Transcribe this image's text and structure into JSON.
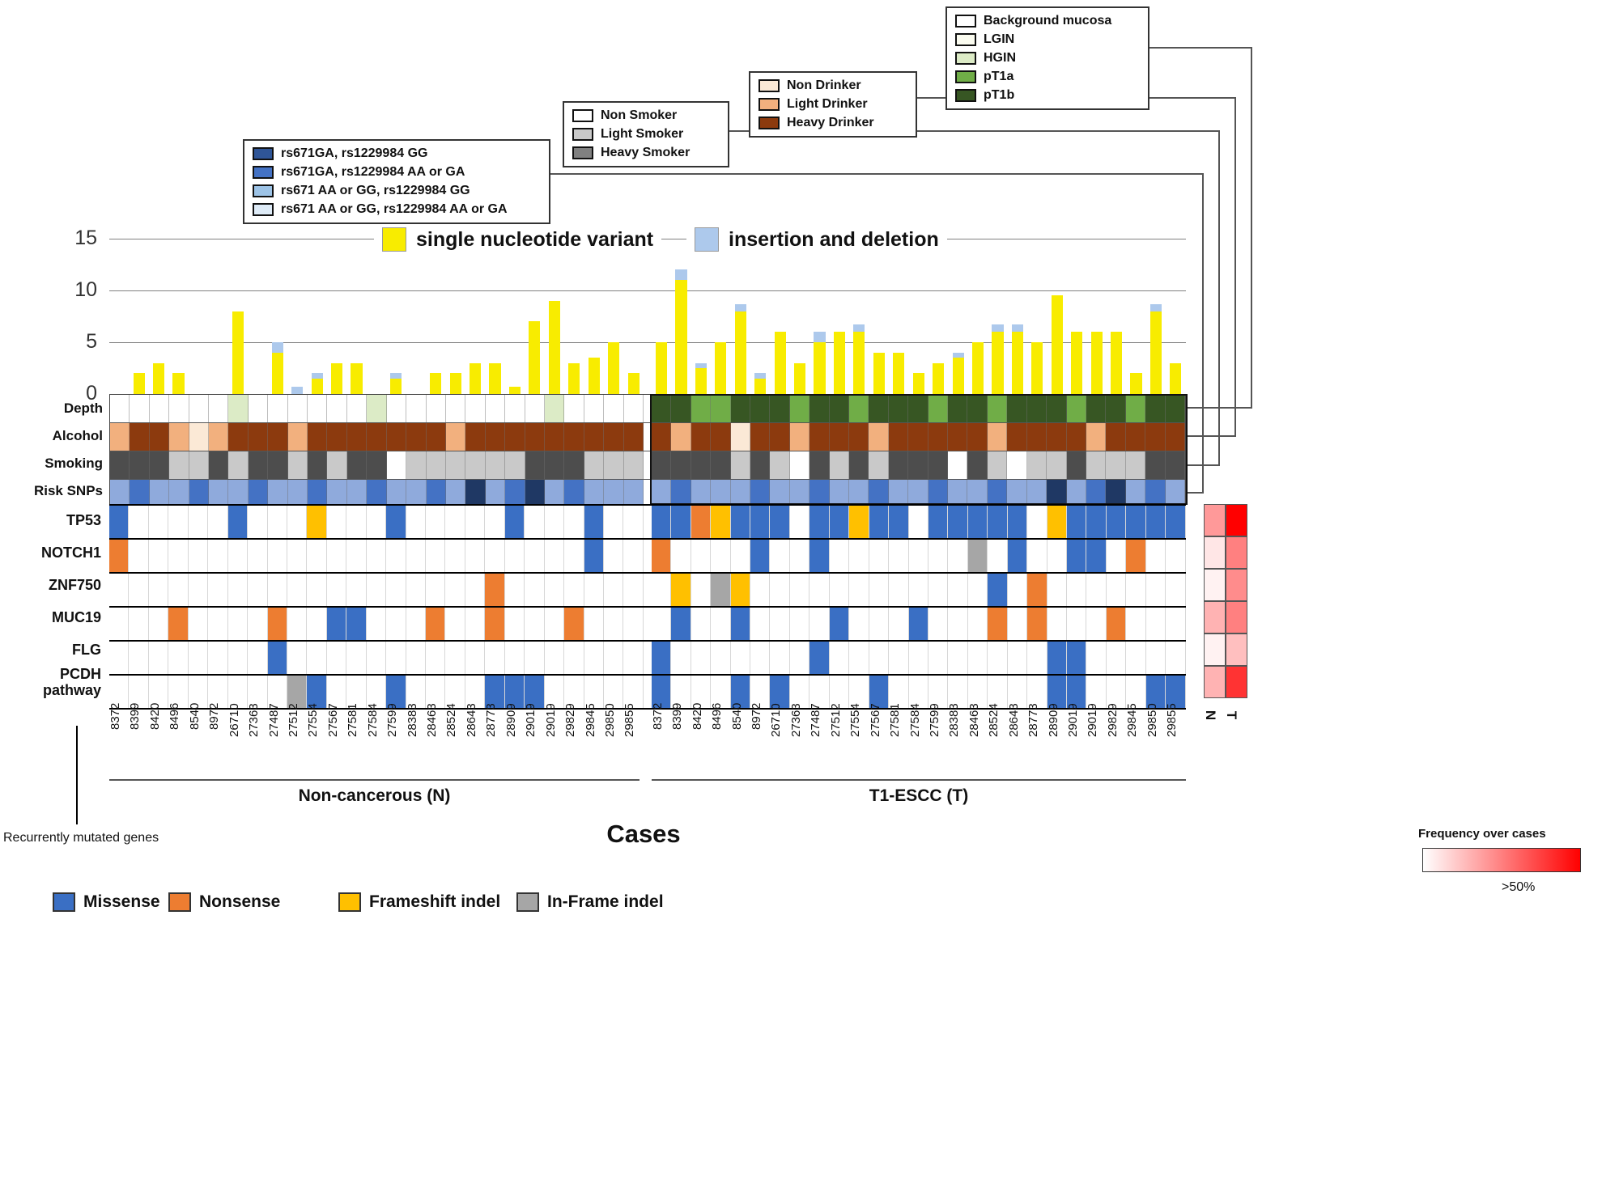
{
  "colors": {
    "snv": "#F8EC00",
    "indel": "#ADC9EC",
    "missense": "#3A6FC4",
    "nonsense": "#ED7D31",
    "frameshift": "#FFC000",
    "inframe": "#A6A6A6",
    "depth": {
      "BM": "#FFFFFF",
      "LGIN": "#FBFCF0",
      "HGIN": "#DCEBC6",
      "pT1a": "#70AD47",
      "pT1b": "#375623"
    },
    "alcohol": {
      "N": "#FBE9D6",
      "L": "#F2B07E",
      "H": "#8C3A0E"
    },
    "smoking": {
      "N": "#FFFFFF",
      "L": "#C9C9C9",
      "H": "#4D4D4D"
    },
    "snp": {
      "d1": "#1F3864",
      "d2": "#4472C4",
      "d3": "#8FAADC",
      "d4": "#DEEBF7"
    }
  },
  "labels": {
    "recurrent": "Recurrently mutated genes",
    "freq_title": "Frequency over cases",
    "freq_threshold": ">50%",
    "heat_cols": [
      "N",
      "T"
    ]
  },
  "legends": {
    "depth": [
      {
        "color": "#FFFFFF",
        "label": "Background mucosa"
      },
      {
        "color": "#FBFCF0",
        "label": "LGIN"
      },
      {
        "color": "#DCEBC6",
        "label": "HGIN"
      },
      {
        "color": "#70AD47",
        "label": "pT1a"
      },
      {
        "color": "#375623",
        "label": "pT1b"
      }
    ],
    "drinker": [
      {
        "color": "#FBE9D6",
        "label": "Non Drinker"
      },
      {
        "color": "#F2B07E",
        "label": "Light Drinker"
      },
      {
        "color": "#8C3A0E",
        "label": "Heavy Drinker"
      }
    ],
    "smoker": [
      {
        "color": "#FFFFFF",
        "label": "Non Smoker"
      },
      {
        "color": "#C9C9C9",
        "label": "Light Smoker"
      },
      {
        "color": "#808080",
        "label": "Heavy Smoker"
      }
    ],
    "snp": [
      {
        "color": "#2F5597",
        "label": "rs671GA, rs1229984 GG"
      },
      {
        "color": "#4472C4",
        "label": "rs671GA, rs1229984 AA or GA"
      },
      {
        "color": "#9DC3E6",
        "label": "rs671 AA or GG, rs1229984 GG"
      },
      {
        "color": "#DEEBF7",
        "label": "rs671 AA or GG, rs1229984 AA or GA"
      }
    ],
    "mutation": [
      {
        "color": "#3A6FC4",
        "label": "Missense"
      },
      {
        "color": "#ED7D31",
        "label": "Nonsense"
      },
      {
        "color": "#FFC000",
        "label": "Frameshift indel"
      },
      {
        "color": "#A6A6A6",
        "label": "In-Frame indel"
      }
    ]
  },
  "chart_data": {
    "type": "heatmap",
    "xlabel": "Cases",
    "cases": [
      "8372",
      "8399",
      "8420",
      "8496",
      "8540",
      "8972",
      "26710",
      "27363",
      "27487",
      "27512",
      "27554",
      "27567",
      "27581",
      "27584",
      "27599",
      "28383",
      "28463",
      "28524",
      "28643",
      "28773",
      "28909",
      "29019",
      "29019",
      "29829",
      "29845",
      "29850",
      "29855"
    ],
    "groups": [
      {
        "key": "N",
        "label": "Non-cancerous (N)"
      },
      {
        "key": "T",
        "label": "T1-ESCC (T)"
      }
    ],
    "bar": {
      "type": "bar",
      "stacked": true,
      "ylim": [
        0,
        15
      ],
      "yticks": [
        "15",
        "10",
        "5",
        "0"
      ],
      "series_labels": [
        "single nucleotide variant",
        "insertion and deletion"
      ],
      "snv": {
        "N": [
          0,
          2,
          3,
          2,
          0,
          0,
          8,
          0,
          4,
          0,
          1.5,
          3,
          3,
          0,
          1.5,
          0,
          2,
          2,
          3,
          3,
          0.7,
          7,
          9,
          3,
          3.5,
          5,
          2
        ],
        "T": [
          5,
          11,
          2.5,
          5,
          8,
          1.5,
          6,
          3,
          5,
          6,
          6,
          4,
          4,
          2,
          3,
          3.5,
          5,
          6,
          6,
          5,
          9.5,
          6,
          6,
          6,
          2,
          8,
          3
        ]
      },
      "indel": {
        "N": [
          0,
          0,
          0,
          0,
          0,
          0,
          0,
          0,
          1,
          0.7,
          0.5,
          0,
          0,
          0,
          0.5,
          0,
          0,
          0,
          0,
          0,
          0,
          0,
          0,
          0,
          0,
          0,
          0
        ],
        "T": [
          0,
          1,
          0.5,
          0,
          0.7,
          0.5,
          0,
          0,
          1,
          0,
          0.7,
          0,
          0,
          0,
          0,
          0.5,
          0,
          0.7,
          0.7,
          0,
          0,
          0,
          0,
          0,
          0,
          0.7,
          0
        ]
      }
    },
    "tracks": [
      {
        "label": "Depth",
        "palette": "depth",
        "N": [
          "BM",
          "BM",
          "BM",
          "BM",
          "BM",
          "BM",
          "HGIN",
          "BM",
          "BM",
          "BM",
          "BM",
          "BM",
          "BM",
          "HGIN",
          "BM",
          "BM",
          "BM",
          "BM",
          "BM",
          "BM",
          "BM",
          "BM",
          "HGIN",
          "BM",
          "BM",
          "BM",
          "BM"
        ],
        "T": [
          "pT1b",
          "pT1b",
          "pT1a",
          "pT1a",
          "pT1b",
          "pT1b",
          "pT1b",
          "pT1a",
          "pT1b",
          "pT1b",
          "pT1a",
          "pT1b",
          "pT1b",
          "pT1b",
          "pT1a",
          "pT1b",
          "pT1b",
          "pT1a",
          "pT1b",
          "pT1b",
          "pT1b",
          "pT1a",
          "pT1b",
          "pT1b",
          "pT1a",
          "pT1b",
          "pT1b"
        ]
      },
      {
        "label": "Alcohol",
        "palette": "alcohol",
        "N": [
          "L",
          "H",
          "H",
          "L",
          "N",
          "L",
          "H",
          "H",
          "H",
          "L",
          "H",
          "H",
          "H",
          "H",
          "H",
          "H",
          "H",
          "L",
          "H",
          "H",
          "H",
          "H",
          "H",
          "H",
          "H",
          "H",
          "H"
        ],
        "T": [
          "H",
          "L",
          "H",
          "H",
          "N",
          "H",
          "H",
          "L",
          "H",
          "H",
          "H",
          "L",
          "H",
          "H",
          "H",
          "H",
          "H",
          "L",
          "H",
          "H",
          "H",
          "H",
          "L",
          "H",
          "H",
          "H",
          "H"
        ]
      },
      {
        "label": "Smoking",
        "palette": "smoking",
        "N": [
          "H",
          "H",
          "H",
          "L",
          "L",
          "H",
          "L",
          "H",
          "H",
          "L",
          "H",
          "L",
          "H",
          "H",
          "N",
          "L",
          "L",
          "L",
          "L",
          "L",
          "L",
          "H",
          "H",
          "H",
          "L",
          "L",
          "L"
        ],
        "T": [
          "H",
          "H",
          "H",
          "H",
          "L",
          "H",
          "L",
          "N",
          "H",
          "L",
          "H",
          "L",
          "H",
          "H",
          "H",
          "N",
          "H",
          "L",
          "N",
          "L",
          "L",
          "H",
          "L",
          "L",
          "L",
          "H",
          "H"
        ]
      },
      {
        "label": "Risk SNPs",
        "palette": "snp",
        "N": [
          "d3",
          "d2",
          "d3",
          "d3",
          "d2",
          "d3",
          "d3",
          "d2",
          "d3",
          "d3",
          "d2",
          "d3",
          "d3",
          "d2",
          "d3",
          "d3",
          "d2",
          "d3",
          "d1",
          "d3",
          "d2",
          "d1",
          "d3",
          "d2",
          "d3",
          "d3",
          "d3"
        ],
        "T": [
          "d3",
          "d2",
          "d3",
          "d3",
          "d3",
          "d2",
          "d3",
          "d3",
          "d2",
          "d3",
          "d3",
          "d2",
          "d3",
          "d3",
          "d2",
          "d3",
          "d3",
          "d2",
          "d3",
          "d3",
          "d1",
          "d3",
          "d2",
          "d1",
          "d3",
          "d2",
          "d3"
        ]
      }
    ],
    "genes": [
      {
        "label": "TP53",
        "N": [
          "M",
          "",
          "",
          "",
          "",
          "",
          "M",
          "",
          "",
          "",
          "F",
          "",
          "",
          "",
          "M",
          "",
          "",
          "",
          "",
          "",
          "M",
          "",
          "",
          "",
          "M",
          "",
          ""
        ],
        "T": [
          "M",
          "M",
          "N",
          "F",
          "M",
          "M",
          "M",
          "",
          "M",
          "M",
          "F",
          "M",
          "M",
          "",
          "M",
          "M",
          "M",
          "M",
          "M",
          "",
          "F",
          "M",
          "M",
          "M",
          "M",
          "M",
          "M"
        ],
        "freq": {
          "N": 0.4,
          "T": 1.0
        }
      },
      {
        "label": "NOTCH1",
        "N": [
          "N",
          "",
          "",
          "",
          "",
          "",
          "",
          "",
          "",
          "",
          "",
          "",
          "",
          "",
          "",
          "",
          "",
          "",
          "",
          "",
          "",
          "",
          "",
          "",
          "M",
          "",
          ""
        ],
        "T": [
          "N",
          "",
          "",
          "",
          "",
          "M",
          "",
          "",
          "M",
          "",
          "",
          "",
          "",
          "",
          "",
          "",
          "I",
          "",
          "M",
          "",
          "",
          "M",
          "M",
          "",
          "N",
          "",
          ""
        ],
        "freq": {
          "N": 0.1,
          "T": 0.5
        }
      },
      {
        "label": "ZNF750",
        "N": [
          "",
          "",
          "",
          "",
          "",
          "",
          "",
          "",
          "",
          "",
          "",
          "",
          "",
          "",
          "",
          "",
          "",
          "",
          "",
          "N",
          "",
          "",
          "",
          "",
          "",
          "",
          ""
        ],
        "T": [
          "",
          "F",
          "",
          "I",
          "F",
          "",
          "",
          "",
          "",
          "",
          "",
          "",
          "",
          "",
          "",
          "",
          "",
          "M",
          "",
          "N",
          "",
          "",
          "",
          "",
          "",
          "",
          ""
        ],
        "freq": {
          "N": 0.05,
          "T": 0.45
        }
      },
      {
        "label": "MUC19",
        "N": [
          "",
          "",
          "",
          "N",
          "",
          "",
          "",
          "",
          "N",
          "",
          "",
          "M",
          "M",
          "",
          "",
          "",
          "N",
          "",
          "",
          "N",
          "",
          "",
          "",
          "N",
          "",
          "",
          ""
        ],
        "T": [
          "",
          "M",
          "",
          "",
          "M",
          "",
          "",
          "",
          "",
          "M",
          "",
          "",
          "",
          "M",
          "",
          "",
          "",
          "N",
          "",
          "N",
          "",
          "",
          "",
          "N",
          "",
          "",
          ""
        ],
        "freq": {
          "N": 0.3,
          "T": 0.5
        }
      },
      {
        "label": "FLG",
        "N": [
          "",
          "",
          "",
          "",
          "",
          "",
          "",
          "",
          "M",
          "",
          "",
          "",
          "",
          "",
          "",
          "",
          "",
          "",
          "",
          "",
          "",
          "",
          "",
          "",
          "",
          "",
          ""
        ],
        "T": [
          "M",
          "",
          "",
          "",
          "",
          "",
          "",
          "",
          "M",
          "",
          "",
          "",
          "",
          "",
          "",
          "",
          "",
          "",
          "",
          "",
          "M",
          "M",
          "",
          "",
          "",
          "",
          ""
        ],
        "freq": {
          "N": 0.05,
          "T": 0.25
        }
      },
      {
        "label": "PCDH pathway",
        "N": [
          "",
          "",
          "",
          "",
          "",
          "",
          "",
          "",
          "",
          "I",
          "M",
          "",
          "",
          "",
          "M",
          "",
          "",
          "",
          "",
          "M",
          "M",
          "M",
          "",
          "",
          "",
          "",
          ""
        ],
        "T": [
          "M",
          "",
          "",
          "",
          "M",
          "",
          "M",
          "",
          "",
          "",
          "",
          "M",
          "",
          "",
          "",
          "",
          "",
          "",
          "",
          "",
          "M",
          "M",
          "",
          "",
          "",
          "M",
          "M"
        ],
        "freq": {
          "N": 0.3,
          "T": 0.8
        }
      }
    ]
  }
}
